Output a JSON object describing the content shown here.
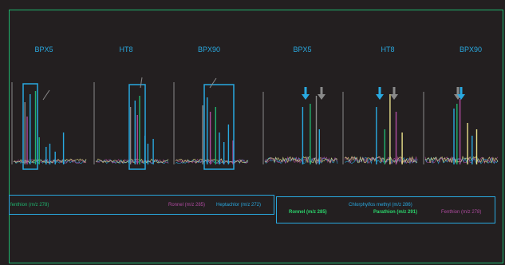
{
  "chart_data": {
    "type": "line",
    "panels": [
      {
        "title": "BPX5",
        "group": "left"
      },
      {
        "title": "HT8",
        "group": "left"
      },
      {
        "title": "BPX90",
        "group": "left"
      },
      {
        "title": "BPX5",
        "group": "right"
      },
      {
        "title": "HT8",
        "group": "right"
      },
      {
        "title": "BPX90",
        "group": "right"
      }
    ],
    "legend_left": {
      "items": [
        {
          "label": "fenthion (m/z 278)",
          "color": "#1fb46e"
        },
        {
          "label": "Ronnel (m/z 285)",
          "color": "#b04ba0"
        },
        {
          "label": "Heptachlor (m/z 272)",
          "color": "#29a9e0"
        }
      ]
    },
    "legend_right": {
      "items": [
        {
          "label": "Chlorphyifos methyl (m/z 286)",
          "color": "#29a9e0"
        },
        {
          "label": "Ronnel (m/z 285)",
          "color": "#2bd46b"
        },
        {
          "label": "Parathion (m/z 291)",
          "color": "#2bd46b"
        },
        {
          "label": "Fenthion (m/z 278)",
          "color": "#b04ba0"
        }
      ]
    },
    "colors": {
      "heptachlor": "#29a9e0",
      "fenthion": "#1fb46e",
      "ronnel": "#b04ba0",
      "parathion": "#e8e08a",
      "grey": "#8a8a8a",
      "frame": "#1fb46e",
      "highlight": "#29a9e0"
    }
  }
}
